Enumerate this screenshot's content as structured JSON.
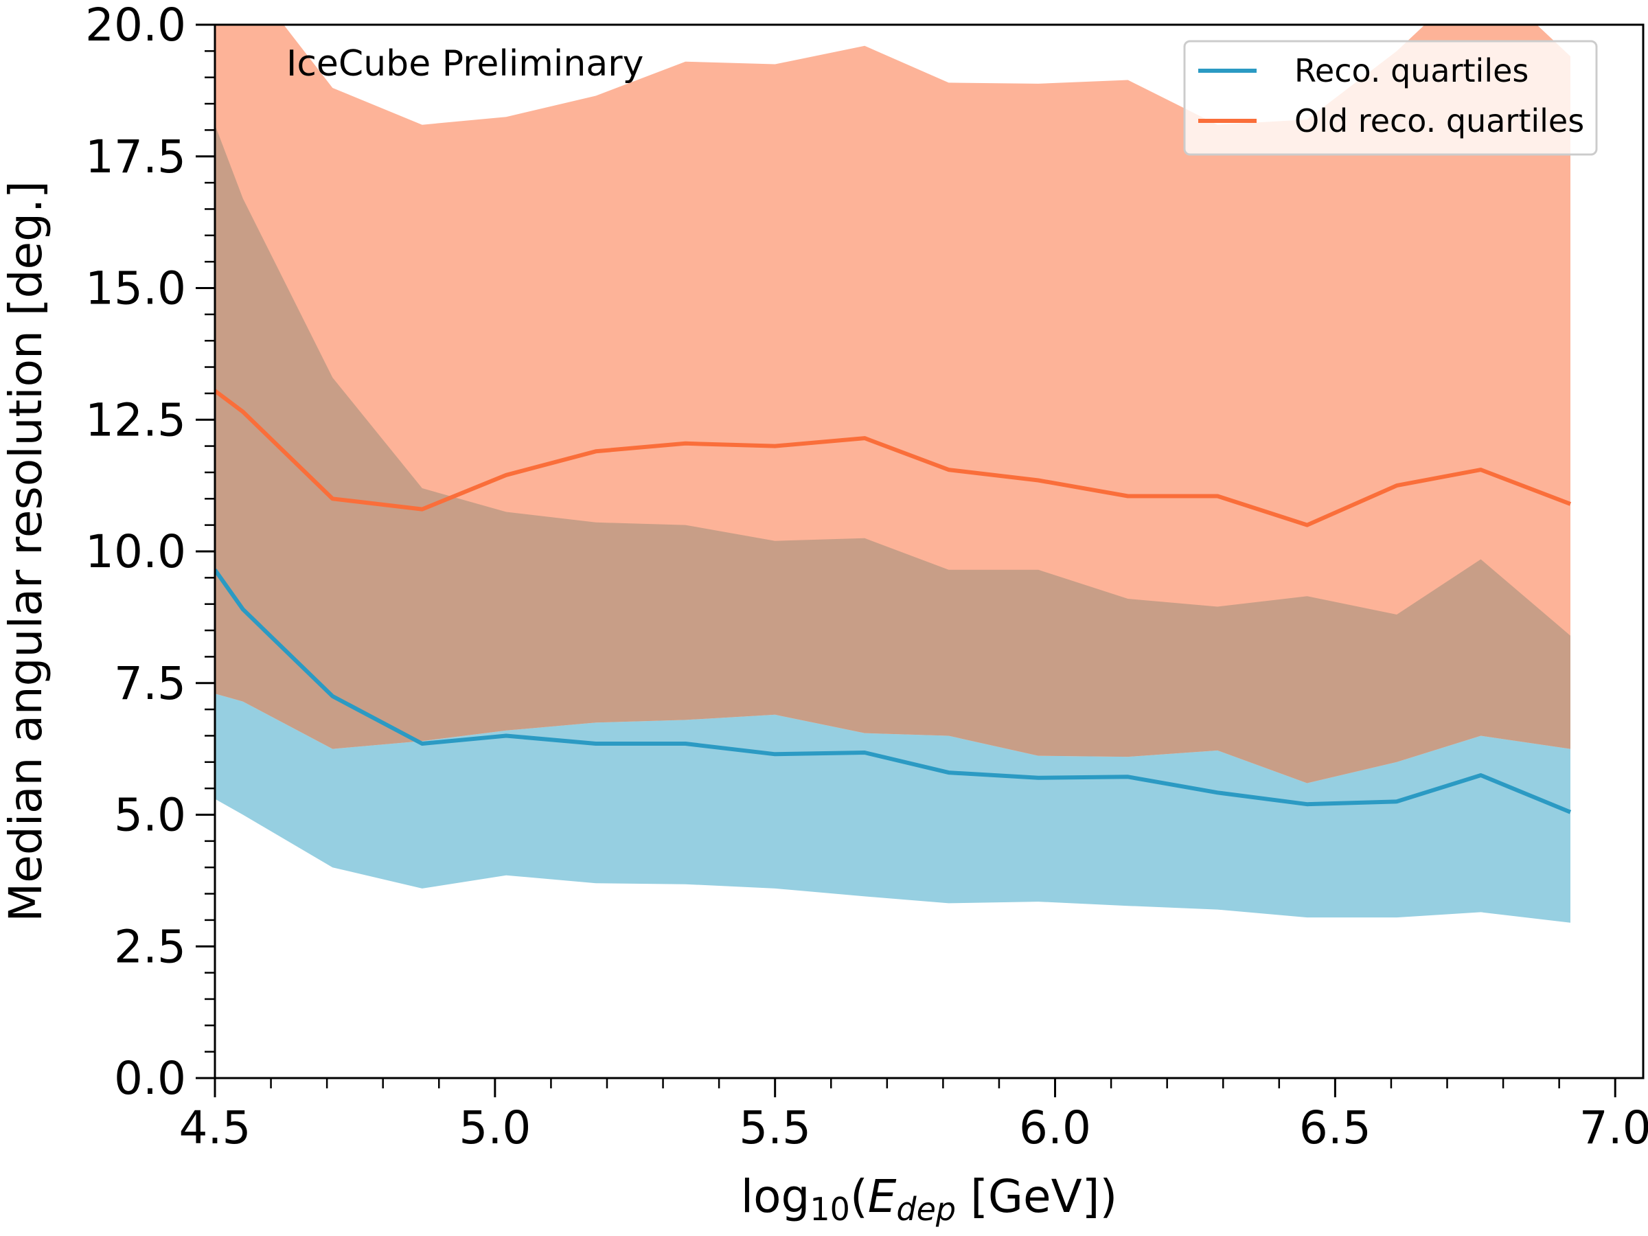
{
  "chart_data": {
    "type": "line",
    "annotation": "IceCube Preliminary",
    "annotation_color": "#e8191f",
    "ylabel": "Median angular resolution [deg.]",
    "xlabel_parts": {
      "prefix": "log",
      "sub10": "10",
      "open": "(",
      "E": "E",
      "sub": "dep",
      "suffix": " [GeV])"
    },
    "xlim": [
      4.5,
      7.05
    ],
    "ylim": [
      0,
      20
    ],
    "x_ticks": [
      "4.5",
      "5.0",
      "5.5",
      "6.0",
      "6.5",
      "7.0"
    ],
    "y_ticks": [
      "0.0",
      "2.5",
      "5.0",
      "7.5",
      "10.0",
      "12.5",
      "15.0",
      "17.5",
      "20.0"
    ],
    "grid": false,
    "legend_position": "top-right",
    "x": [
      4.5,
      4.55,
      4.71,
      4.87,
      5.02,
      5.18,
      5.34,
      5.5,
      5.66,
      5.81,
      5.97,
      6.13,
      6.29,
      6.45,
      6.61,
      6.76,
      6.92
    ],
    "series": [
      {
        "name": "Reco. quartiles",
        "color": "#2b9ac3",
        "fill": "#96cfe1",
        "median": [
          9.65,
          8.9,
          7.25,
          6.35,
          6.5,
          6.35,
          6.35,
          6.15,
          6.18,
          5.8,
          5.7,
          5.72,
          5.42,
          5.2,
          5.25,
          5.75,
          5.05
        ],
        "lower": [
          5.3,
          5.0,
          4.0,
          3.6,
          3.85,
          3.7,
          3.68,
          3.6,
          3.45,
          3.32,
          3.35,
          3.27,
          3.2,
          3.05,
          3.05,
          3.15,
          2.95
        ],
        "upper": [
          7.3,
          7.15,
          6.25,
          6.4,
          6.6,
          6.75,
          6.8,
          6.9,
          6.55,
          6.5,
          6.12,
          6.1,
          6.22,
          5.6,
          6.0,
          6.5,
          6.25
        ]
      },
      {
        "name": "Old reco. quartiles",
        "color": "#fa6e3a",
        "fill": "#fdb398",
        "median": [
          13.05,
          12.65,
          11.0,
          10.8,
          11.45,
          11.9,
          12.05,
          12.0,
          12.15,
          11.55,
          11.35,
          11.05,
          11.05,
          10.5,
          11.25,
          11.55,
          10.9
        ],
        "lower": [
          7.3,
          7.15,
          6.25,
          6.4,
          6.6,
          6.75,
          6.8,
          6.9,
          6.55,
          6.5,
          6.12,
          6.1,
          6.22,
          5.6,
          6.0,
          6.5,
          6.25
        ],
        "upper": [
          21.0,
          21.0,
          18.8,
          18.1,
          18.25,
          18.65,
          19.3,
          19.25,
          19.6,
          18.9,
          18.88,
          18.95,
          18.1,
          18.2,
          19.5,
          21.0,
          19.4
        ],
        "overlap_fill": "#c89e87",
        "overlap_upper": [
          18.1,
          16.7,
          13.3,
          11.2,
          10.75,
          10.55,
          10.5,
          10.2,
          10.25,
          9.65,
          9.65,
          9.1,
          8.95,
          9.15,
          8.8,
          9.85,
          8.4
        ]
      }
    ]
  }
}
